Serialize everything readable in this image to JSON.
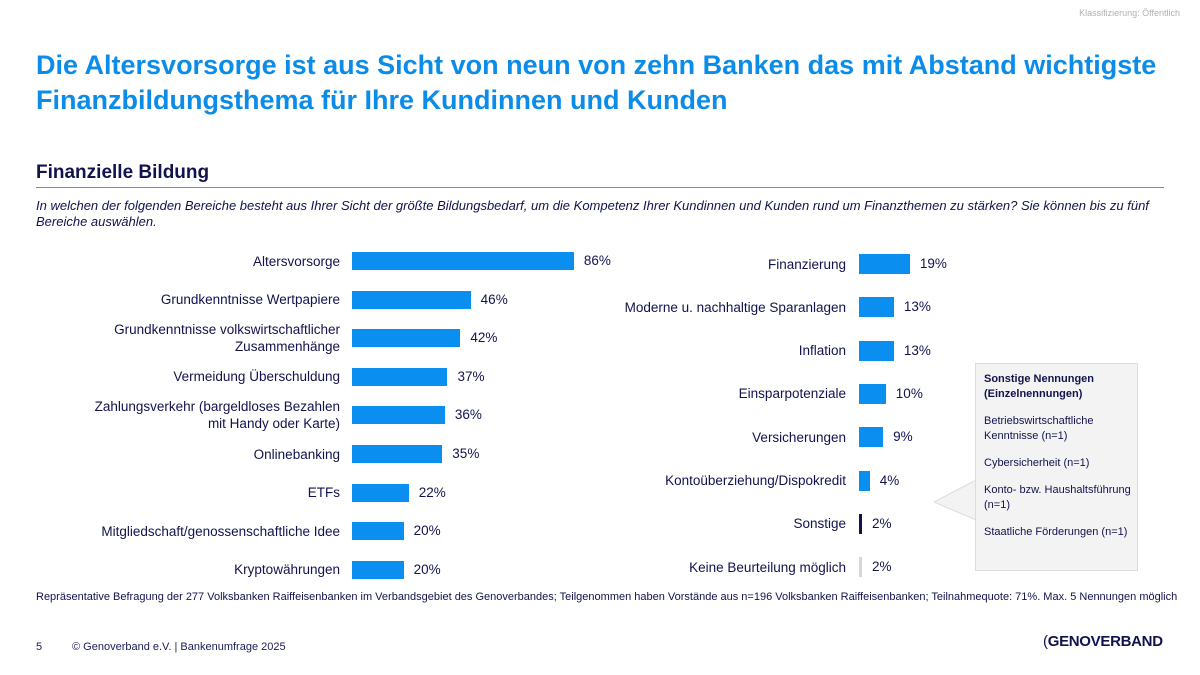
{
  "classification": "Klassifizierung: Öffentlich",
  "title": "Die Altersvorsorge ist aus Sicht von neun von zehn Banken das mit Abstand wichtigste Finanzbildungsthema für Ihre Kundinnen und Kunden",
  "section_title": "Finanzielle Bildung",
  "question": "In welchen der folgenden Bereiche besteht aus Ihrer Sicht der größte Bildungsbedarf, um die Kompetenz Ihrer Kundinnen und Kunden rund um Finanzthemen zu stärken? Sie können bis zu fünf Bereiche auswählen.",
  "colors": {
    "accent": "#0c8ce9",
    "bar": "#0a8ef0",
    "sonstige": "#12124e",
    "keine": "#d8d8d8",
    "text": "#12124e"
  },
  "chart_data": [
    {
      "type": "bar",
      "orientation": "horizontal",
      "unit": "%",
      "categories": [
        "Altersvorsorge",
        "Grundkenntnisse Wertpapiere",
        "Grundkenntnisse volkswirtschaftlicher Zusammenhänge",
        "Vermeidung Überschuldung",
        "Zahlungsverkehr (bargeldloses Bezahlen mit Handy oder Karte)",
        "Onlinebanking",
        "ETFs",
        "Mitgliedschaft/genossenschaftliche Idee",
        "Kryptowährungen"
      ],
      "values": [
        86,
        46,
        42,
        37,
        36,
        35,
        22,
        20,
        20
      ],
      "labels": [
        "86%",
        "46%",
        "42%",
        "37%",
        "36%",
        "35%",
        "22%",
        "20%",
        "20%"
      ]
    },
    {
      "type": "bar",
      "orientation": "horizontal",
      "unit": "%",
      "categories": [
        "Finanzierung",
        "Moderne u. nachhaltige Sparanlagen",
        "Inflation",
        "Einsparpotenziale",
        "Versicherungen",
        "Kontoüberziehung/Dispokredit",
        "Sonstige",
        "Keine Beurteilung möglich"
      ],
      "values": [
        19,
        13,
        13,
        10,
        9,
        4,
        2,
        2
      ],
      "labels": [
        "19%",
        "13%",
        "13%",
        "10%",
        "9%",
        "4%",
        "2%",
        "2%"
      ]
    }
  ],
  "callout": {
    "heading": "Sonstige Nennungen (Einzelnennungen)",
    "items": [
      "Betriebswirtschaftliche Kenntnisse (n=1)",
      "Cybersicherheit (n=1)",
      "Konto- bzw. Haushaltsführung (n=1)",
      "Staatliche Förderungen (n=1)"
    ]
  },
  "note": "Repräsentative Befragung der 277 Volksbanken Raiffeisenbanken im Verbandsgebiet des Genoverbandes; Teilgenommen haben Vorstände aus n=196 Volksbanken Raiffeisenbanken; Teilnahmequote: 71%. Max. 5 Nennungen möglich",
  "footer": {
    "page": "5",
    "copyright": "© Genoverband e.V. | Bankenumfrage 2025",
    "logo": "GENOVERBAND"
  }
}
